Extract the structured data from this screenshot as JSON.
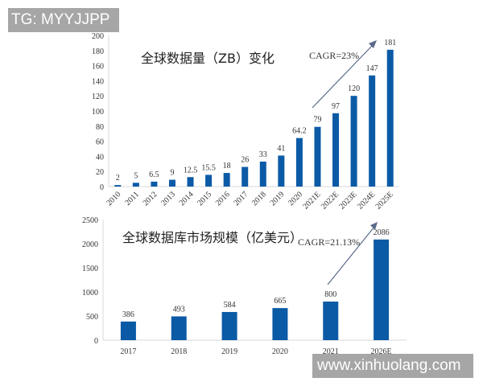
{
  "watermarks": {
    "top": "TG: MYYJJPP",
    "bottom": "www.xinhuolang.com"
  },
  "colors": {
    "bar": "#0b5aa6",
    "arrow": "#5a6a8a",
    "axis": "#d9d9d9"
  },
  "chart_data": [
    {
      "type": "bar",
      "title": "全球数据量（ZB）变化",
      "annotation": "CAGR=23%",
      "xlabel": "",
      "ylabel": "",
      "ylim": [
        0,
        200
      ],
      "yticks": [
        0,
        20,
        40,
        60,
        80,
        100,
        120,
        140,
        160,
        180,
        200
      ],
      "categories": [
        "2010",
        "2011",
        "2012",
        "2013",
        "2014",
        "2015",
        "2016",
        "2017",
        "2018",
        "2019",
        "2020",
        "2021E",
        "2022E",
        "2023E",
        "2024E",
        "2025E"
      ],
      "values": [
        2,
        5,
        6.5,
        9,
        12.5,
        15.5,
        18,
        26,
        33,
        41,
        64.2,
        79,
        97,
        120,
        147,
        181
      ],
      "labels": [
        "2",
        "5",
        "6.5",
        "9",
        "12.5",
        "15.5",
        "18",
        "26",
        "33",
        "41",
        "64.2",
        "79",
        "97",
        "120",
        "147",
        "181"
      ],
      "grid": false,
      "legend": null
    },
    {
      "type": "bar",
      "title": "全球数据库市场规模（亿美元）",
      "annotation": "CAGR=21.13%",
      "xlabel": "",
      "ylabel": "",
      "ylim": [
        0,
        2500
      ],
      "yticks": [
        0,
        500,
        1000,
        1500,
        2000,
        2500
      ],
      "categories": [
        "2017",
        "2018",
        "2019",
        "2020",
        "2021",
        "2026E"
      ],
      "values": [
        386,
        493,
        584,
        665,
        800,
        2086
      ],
      "labels": [
        "386",
        "493",
        "584",
        "665",
        "800",
        "2086"
      ],
      "grid": false,
      "legend": null
    }
  ]
}
